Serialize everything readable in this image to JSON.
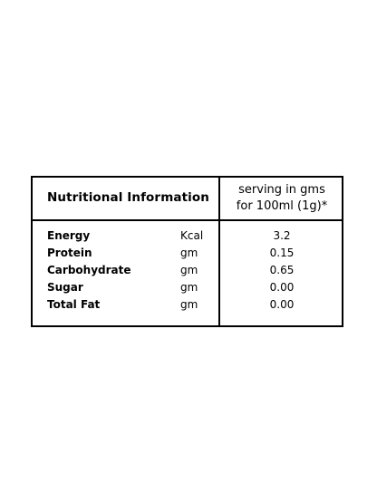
{
  "table": {
    "title": "Nutritional Information",
    "serving_line1": "serving in gms",
    "serving_line2": "for 100ml (1g)*",
    "rows": [
      {
        "name": "Energy",
        "unit": "Kcal",
        "value": "3.2"
      },
      {
        "name": "Protein",
        "unit": "gm",
        "value": "0.15"
      },
      {
        "name": "Carbohydrate",
        "unit": "gm",
        "value": "0.65"
      },
      {
        "name": "Sugar",
        "unit": "gm",
        "value": "0.00"
      },
      {
        "name": "Total Fat",
        "unit": "gm",
        "value": "0.00"
      }
    ]
  }
}
